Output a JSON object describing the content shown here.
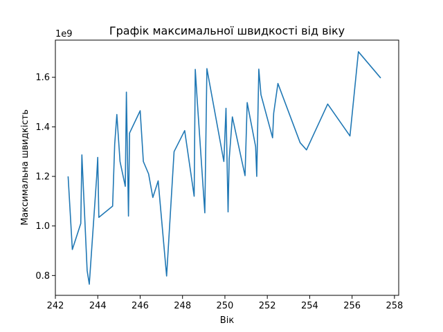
{
  "chart_data": {
    "type": "line",
    "title": "Графік максимальної швидкості від віку",
    "xlabel": "Вік",
    "ylabel": "Максимальна швидкість",
    "y_offset_label": "1e9",
    "xlim": [
      242.0,
      258.2
    ],
    "ylim": [
      0.72,
      1.75
    ],
    "x_ticks": [
      242,
      244,
      246,
      248,
      250,
      252,
      254,
      256,
      258
    ],
    "x_tick_labels": [
      "242",
      "244",
      "246",
      "248",
      "250",
      "252",
      "254",
      "256",
      "258"
    ],
    "y_ticks": [
      0.8,
      1.0,
      1.2,
      1.4,
      1.6
    ],
    "y_tick_labels": [
      "0.8",
      "1.0",
      "1.2",
      "1.4",
      "1.6"
    ],
    "grid": false,
    "series": [
      {
        "color": "#1f77b4",
        "x": [
          242.6,
          242.8,
          243.2,
          243.25,
          243.5,
          243.6,
          243.95,
          244.0,
          244.05,
          244.7,
          244.8,
          244.9,
          245.05,
          245.3,
          245.35,
          245.45,
          245.5,
          246.0,
          246.15,
          246.4,
          246.6,
          246.85,
          247.25,
          247.6,
          248.1,
          248.55,
          248.6,
          248.7,
          249.05,
          249.15,
          249.95,
          250.05,
          250.15,
          250.2,
          250.35,
          250.95,
          251.05,
          251.45,
          251.5,
          251.6,
          251.7,
          252.25,
          252.3,
          252.5,
          253.55,
          253.85,
          254.85,
          255.9,
          256.3,
          257.35
        ],
        "values": [
          1.2,
          0.905,
          1.01,
          1.287,
          0.82,
          0.765,
          1.2,
          1.277,
          1.035,
          1.08,
          1.33,
          1.45,
          1.26,
          1.16,
          1.54,
          1.04,
          1.375,
          1.465,
          1.26,
          1.21,
          1.115,
          1.182,
          0.798,
          1.3,
          1.385,
          1.12,
          1.632,
          1.5,
          1.053,
          1.635,
          1.26,
          1.475,
          1.057,
          1.27,
          1.44,
          1.203,
          1.498,
          1.32,
          1.2,
          1.633,
          1.53,
          1.356,
          1.455,
          1.575,
          1.336,
          1.307,
          1.492,
          1.363,
          1.703,
          1.597
        ]
      }
    ]
  }
}
